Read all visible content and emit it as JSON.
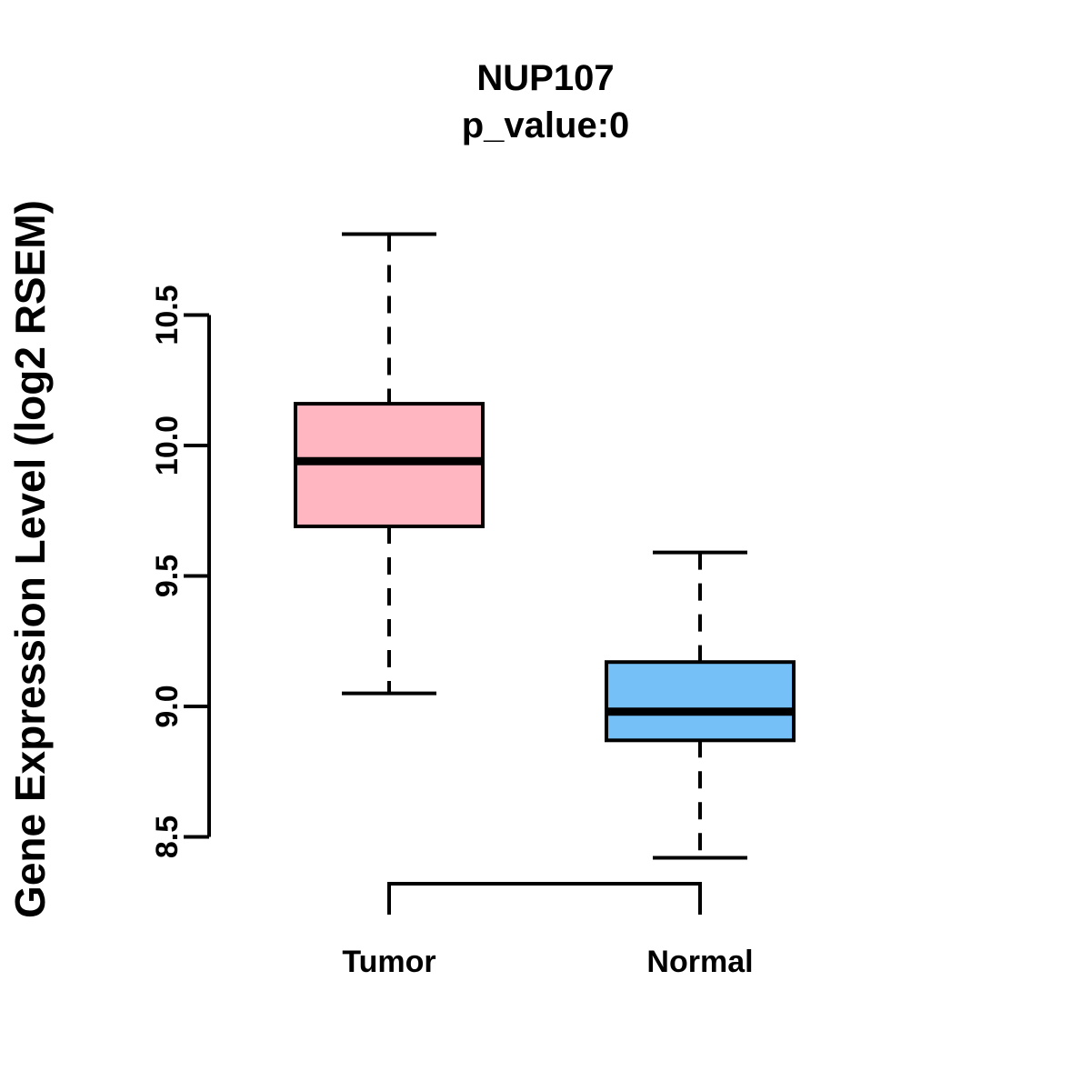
{
  "chart_data": {
    "type": "boxplot",
    "title": "NUP107",
    "subtitle": "p_value:0",
    "ylabel": "Gene Expression Level (log2 RSEM)",
    "y_axis": {
      "ticks": [
        {
          "label": "8.5",
          "value": 8.5
        },
        {
          "label": "9.0",
          "value": 9.0
        },
        {
          "label": "9.5",
          "value": 9.5
        },
        {
          "label": "10.0",
          "value": 10.0
        },
        {
          "label": "10.5",
          "value": 10.5
        }
      ],
      "shown_range": [
        8.5,
        10.5
      ]
    },
    "x_axis": {
      "categories": [
        "Tumor",
        "Normal"
      ]
    },
    "groups": [
      {
        "label": "Tumor",
        "fill": "#FFB6C1",
        "stats": {
          "whisker_low": 9.05,
          "q1": 9.69,
          "median": 9.94,
          "q3": 10.16,
          "whisker_high": 10.81
        }
      },
      {
        "label": "Normal",
        "fill": "#74C0F7",
        "stats": {
          "whisker_low": 8.42,
          "q1": 8.87,
          "median": 8.98,
          "q3": 9.17,
          "whisker_high": 9.59
        }
      }
    ],
    "style": {
      "stroke_color": "#000000",
      "background": "#FFFFFF"
    },
    "legend": "none",
    "grid": false
  }
}
